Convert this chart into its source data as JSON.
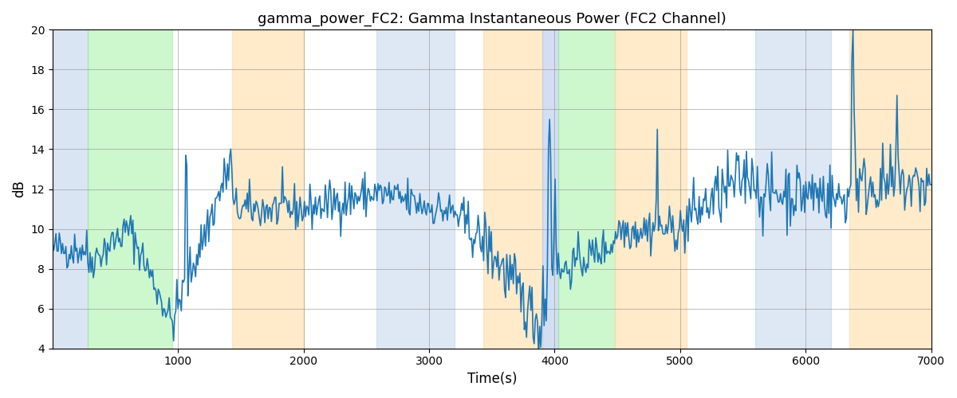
{
  "title": "gamma_power_FC2: Gamma Instantaneous Power (FC2 Channel)",
  "xlabel": "Time(s)",
  "ylabel": "dB",
  "xlim": [
    0,
    7000
  ],
  "ylim": [
    4,
    20
  ],
  "yticks": [
    4,
    6,
    8,
    10,
    12,
    14,
    16,
    18,
    20
  ],
  "xticks": [
    1000,
    2000,
    3000,
    4000,
    5000,
    6000,
    7000
  ],
  "bg_regions": [
    {
      "xmin": 0,
      "xmax": 280,
      "color": "#AEC6E8",
      "alpha": 0.45
    },
    {
      "xmin": 280,
      "xmax": 950,
      "color": "#90EE90",
      "alpha": 0.45
    },
    {
      "xmin": 1430,
      "xmax": 2000,
      "color": "#FFDAA0",
      "alpha": 0.55
    },
    {
      "xmin": 2580,
      "xmax": 3200,
      "color": "#AEC6E8",
      "alpha": 0.4
    },
    {
      "xmin": 3430,
      "xmax": 3900,
      "color": "#FFDAA0",
      "alpha": 0.55
    },
    {
      "xmin": 3900,
      "xmax": 4030,
      "color": "#AEC6E8",
      "alpha": 0.55
    },
    {
      "xmin": 4030,
      "xmax": 4480,
      "color": "#90EE90",
      "alpha": 0.45
    },
    {
      "xmin": 4480,
      "xmax": 5050,
      "color": "#FFDAA0",
      "alpha": 0.55
    },
    {
      "xmin": 5600,
      "xmax": 6200,
      "color": "#AEC6E8",
      "alpha": 0.4
    },
    {
      "xmin": 6350,
      "xmax": 7000,
      "color": "#FFDAA0",
      "alpha": 0.55
    }
  ],
  "line_color": "#1f77b4",
  "line_width": 1.2,
  "seed": 42
}
